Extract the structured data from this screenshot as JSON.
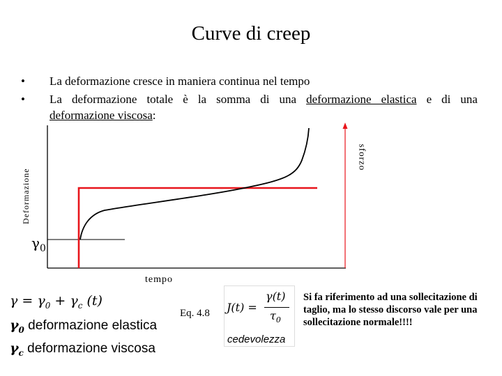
{
  "slide": {
    "title": "Curve di creep",
    "bullets": [
      "La deformazione cresce in maniera continua nel tempo",
      "La deformazione totale è la somma di una deformazione elastica e di una"
    ],
    "bullet2_prefix": "La deformazione totale è la somma di una ",
    "bullet2_underlined": "deformazione elastica",
    "bullet2_suffix": " e di una",
    "bullet2_line2_underlined": "deformazione viscosa",
    "bullet2_line2_end": ":",
    "bullet_symbol": "•"
  },
  "figure": {
    "y_axis_label": "Deformazione",
    "x_axis_label": "tempo",
    "stress_axis_label": "sforzo",
    "gamma0_symbol": "γ",
    "gamma0_sub": "0",
    "colors": {
      "stress": "#e8151b",
      "strain": "#000000"
    }
  },
  "equations": {
    "main": "γ = γ",
    "main_sub0": "0",
    "main_plus": " + γ",
    "main_subc": "c",
    "main_end": " (t)",
    "def_elastic_symbol": "γ",
    "def_elastic_sub": "0",
    "def_elastic_text": " deformazione elastica",
    "def_viscous_symbol": "γ",
    "def_viscous_sub": "c",
    "def_viscous_text": " deformazione viscosa",
    "eq_ref": "Eq. 4.8",
    "compliance_lhs": "J(t) =",
    "compliance_num": "γ(t)",
    "compliance_den": "τ",
    "compliance_den_sub": "0",
    "compliance_name": "cedevolezza"
  },
  "note": "Si fa riferimento ad una sollecitazione di taglio, ma lo stesso discorso vale per una sollecitazione normale!!!!"
}
